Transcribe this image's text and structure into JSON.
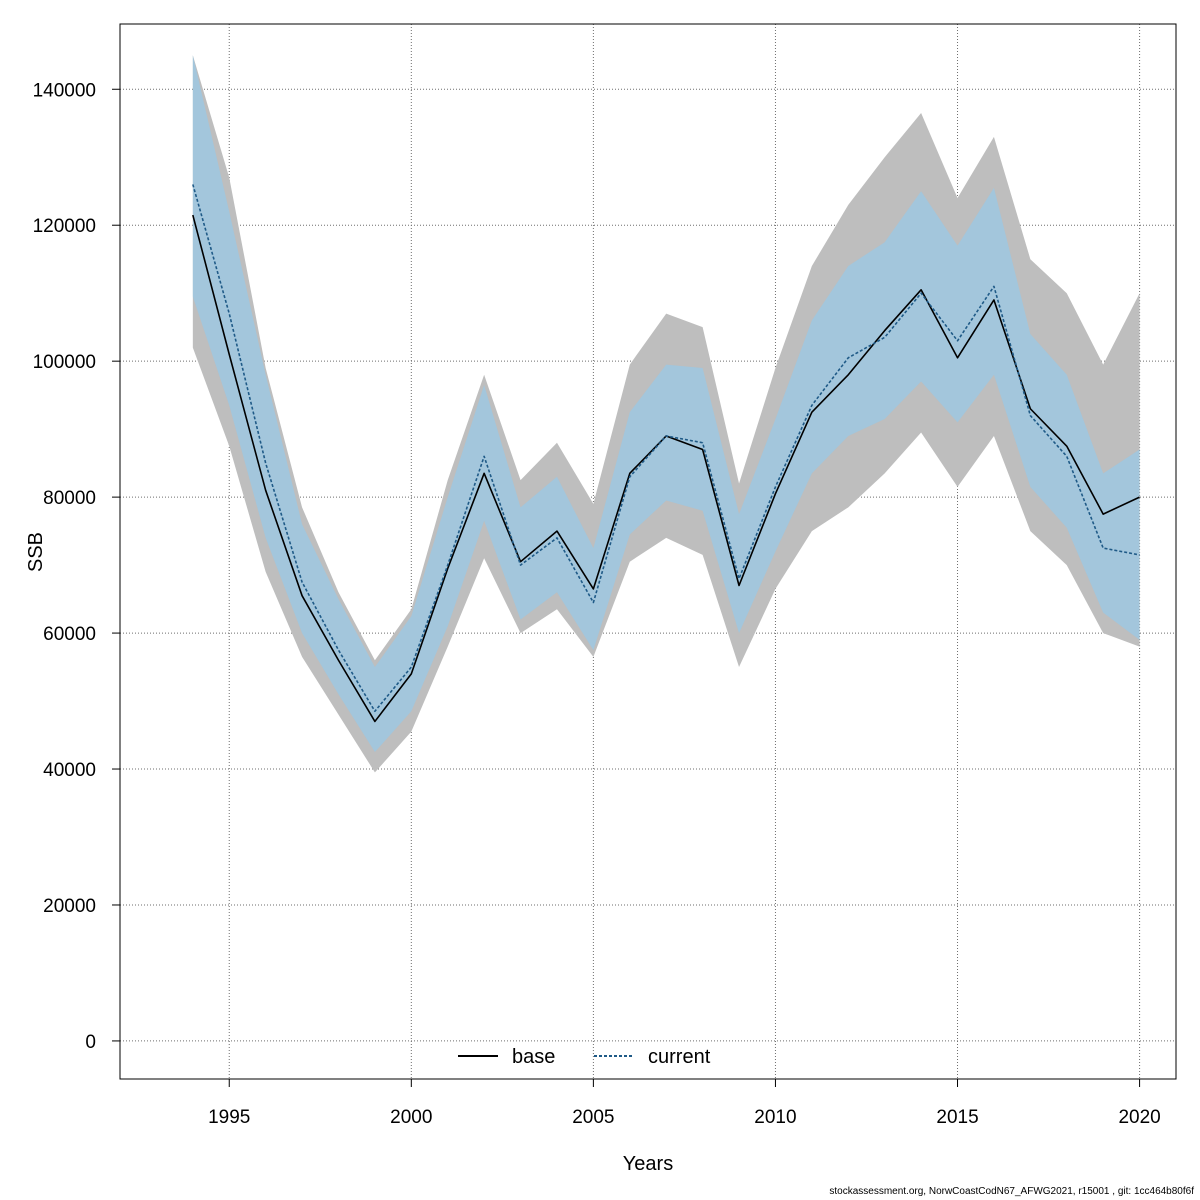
{
  "footer_text": "stockassessment.org, NorwCoastCodN67_AFWG2021, r15001 , git: 1cc464b80f6f",
  "chart_data": {
    "type": "line",
    "title": "",
    "xlabel": "Years",
    "ylabel": "SSB",
    "xlim": [
      1992,
      2021
    ],
    "ylim": [
      -5600,
      149600
    ],
    "x_ticks": [
      1995,
      2000,
      2005,
      2010,
      2015,
      2020
    ],
    "y_ticks": [
      0,
      20000,
      40000,
      60000,
      80000,
      100000,
      120000,
      140000
    ],
    "grid": true,
    "legend_position": "bottom-center",
    "x": [
      1994,
      1995,
      1996,
      1997,
      1998,
      1999,
      2000,
      2001,
      2002,
      2003,
      2004,
      2005,
      2006,
      2007,
      2008,
      2009,
      2010,
      2011,
      2012,
      2013,
      2014,
      2015,
      2016,
      2017,
      2018,
      2019,
      2020
    ],
    "series": [
      {
        "name": "base",
        "color": "#000000",
        "band_color": "#bebebe",
        "line_style": "solid",
        "values": [
          121500,
          101000,
          81000,
          65500,
          56000,
          47000,
          54000,
          69500,
          83500,
          70500,
          75000,
          66500,
          83500,
          89000,
          87000,
          67000,
          80500,
          92500,
          98000,
          104500,
          110500,
          100500,
          109000,
          93000,
          87500,
          77500,
          80000
        ],
        "lower": [
          102000,
          87500,
          69000,
          56500,
          48000,
          39500,
          45500,
          58000,
          71000,
          60000,
          63500,
          56500,
          70500,
          74000,
          71500,
          55000,
          66500,
          75000,
          78500,
          83500,
          89500,
          81500,
          89000,
          75000,
          70000,
          60000,
          58000
        ],
        "upper": [
          145000,
          127000,
          99000,
          78500,
          66000,
          56000,
          63500,
          82500,
          98000,
          82500,
          88000,
          79000,
          99500,
          107000,
          105000,
          82000,
          99000,
          114000,
          123000,
          130000,
          136500,
          124000,
          133000,
          115000,
          110000,
          99500,
          110000
        ]
      },
      {
        "name": "current",
        "color": "#1f5a87",
        "band_color": "#87cefa",
        "line_style": "dashed",
        "values": [
          126000,
          107000,
          85000,
          67500,
          57500,
          48500,
          55000,
          70000,
          86000,
          70000,
          74000,
          64500,
          83000,
          89000,
          88000,
          68000,
          81500,
          93500,
          100500,
          103500,
          110000,
          103000,
          111000,
          92000,
          86000,
          72500,
          71500
        ],
        "lower": [
          109500,
          93500,
          74000,
          60000,
          51000,
          42500,
          48500,
          61000,
          76500,
          62000,
          66000,
          57500,
          74500,
          79500,
          78000,
          60000,
          72000,
          83500,
          89000,
          91500,
          97000,
          91000,
          98000,
          81500,
          75500,
          63000,
          59000
        ],
        "upper": [
          145000,
          122000,
          98000,
          76000,
          65000,
          55000,
          62500,
          80000,
          96500,
          78500,
          83000,
          72500,
          92500,
          99500,
          99000,
          77500,
          91500,
          106000,
          114000,
          117500,
          125000,
          117000,
          125500,
          104000,
          98000,
          83500,
          87000
        ]
      }
    ]
  }
}
